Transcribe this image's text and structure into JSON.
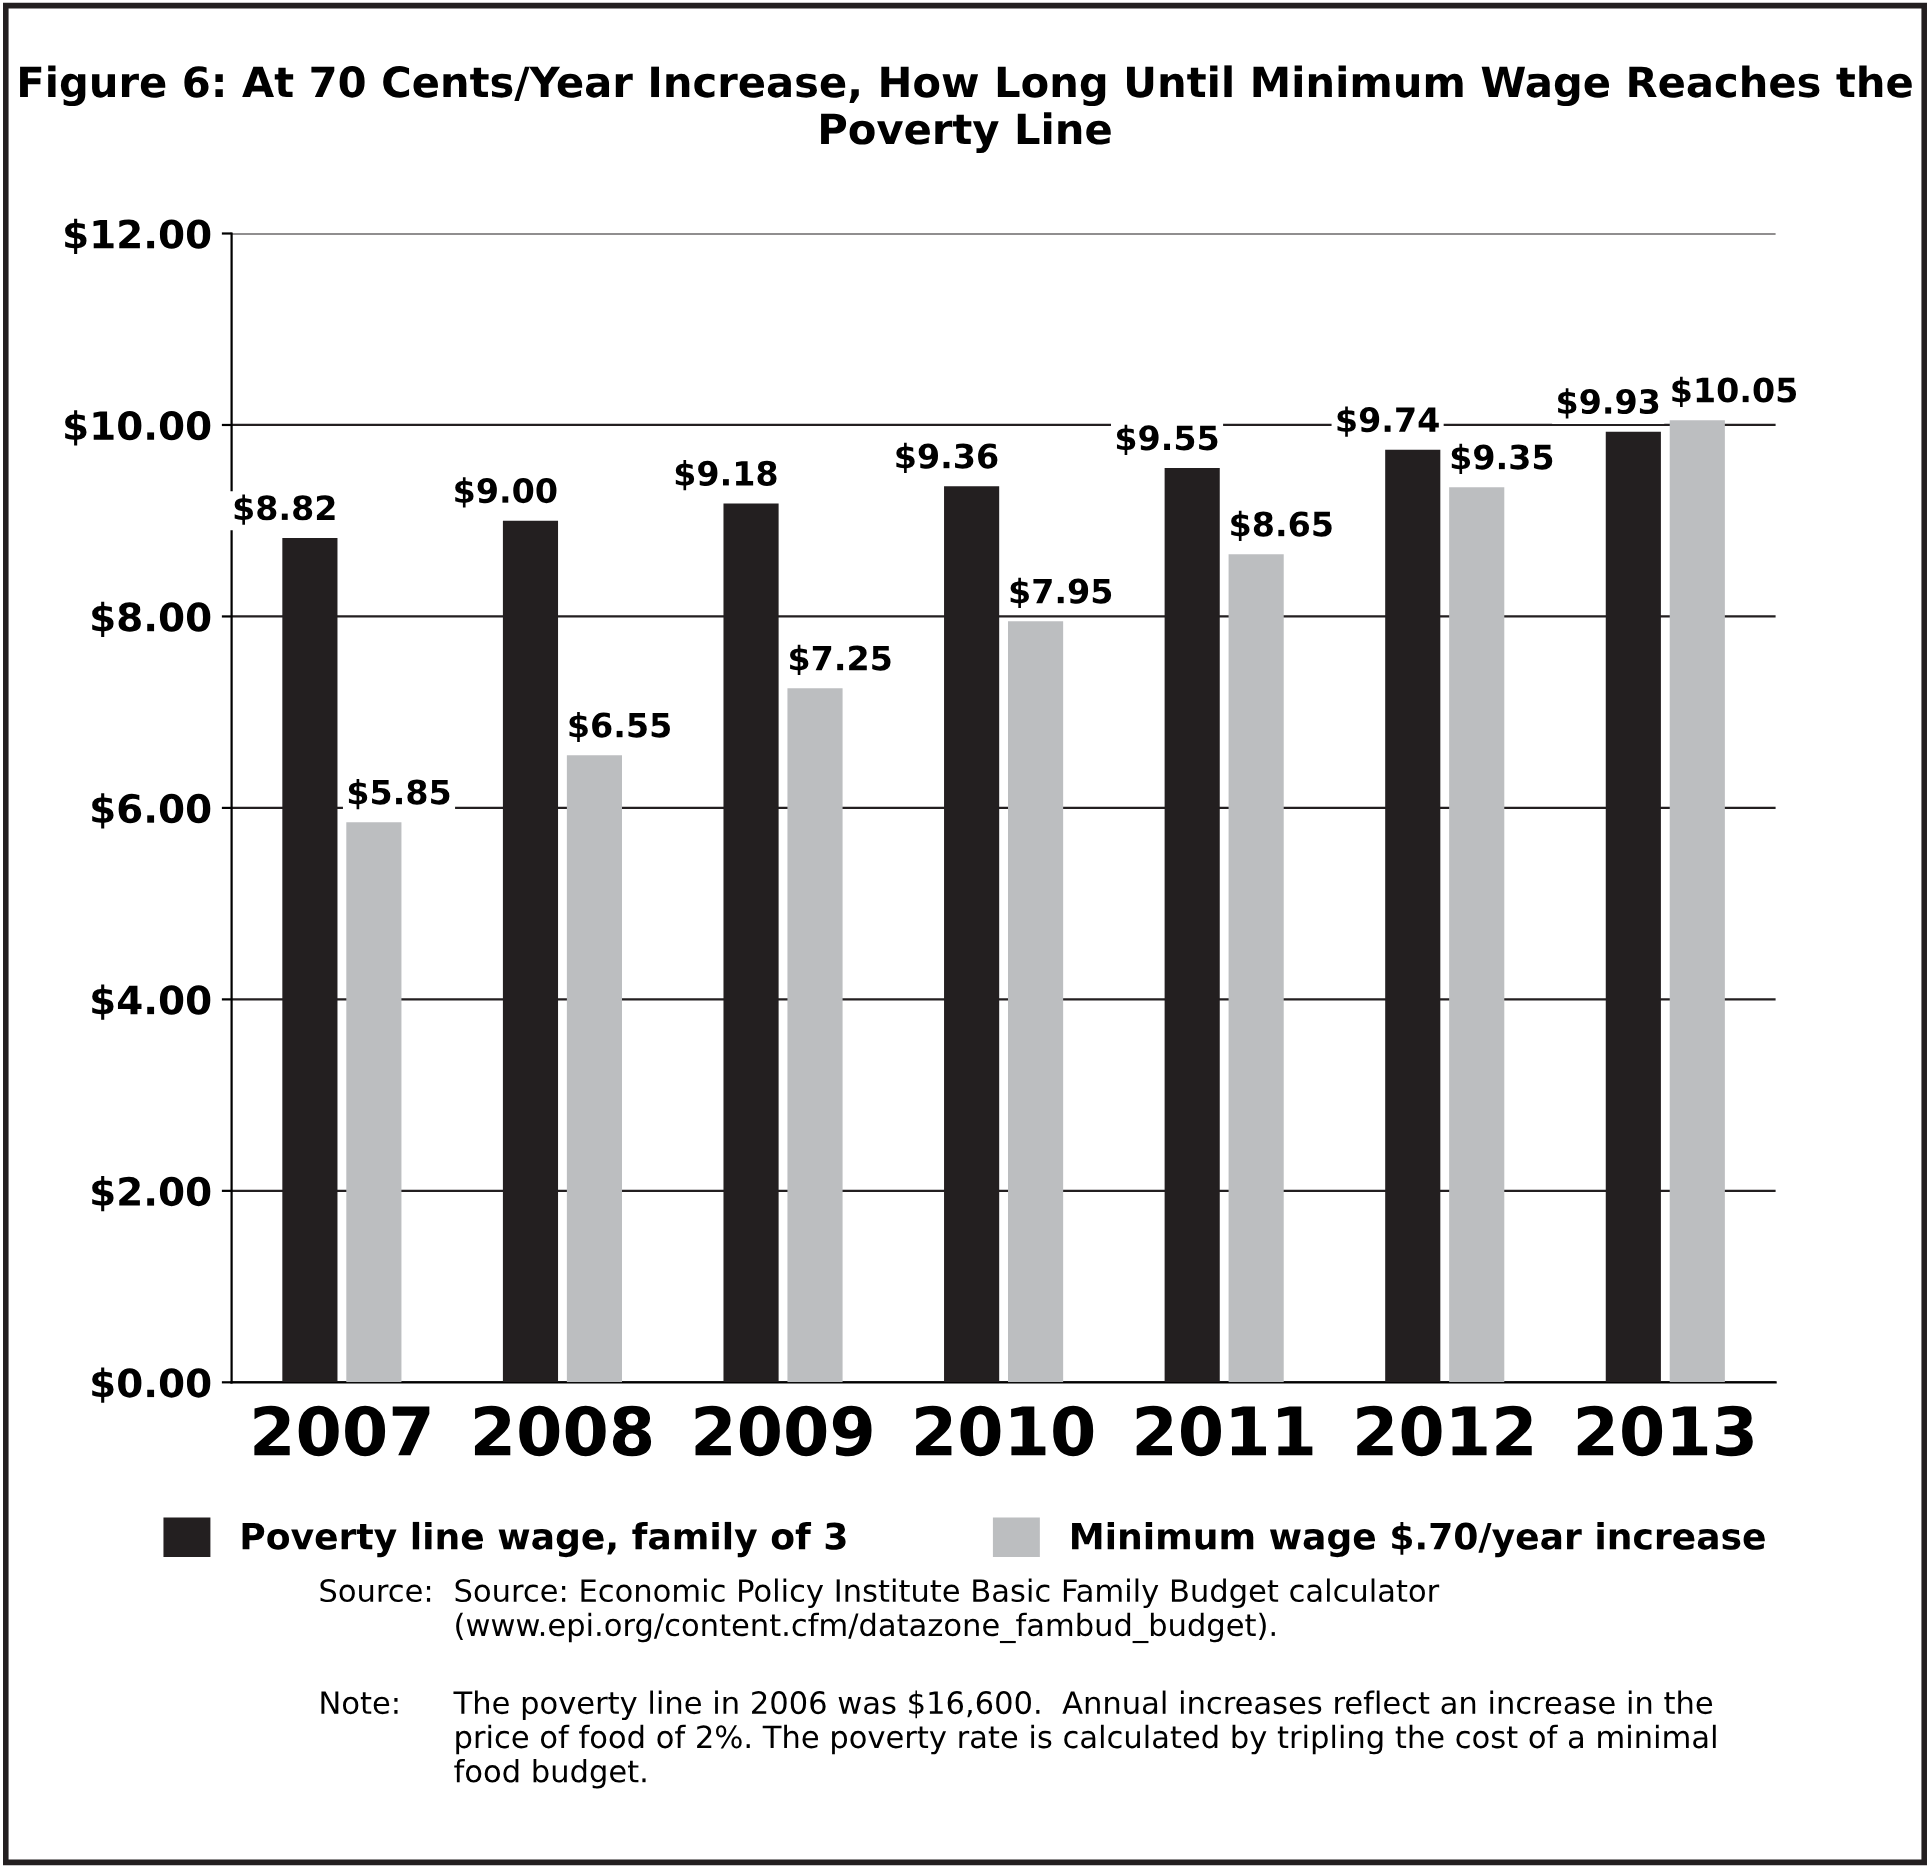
{
  "chart_data": {
    "type": "bar",
    "title": "Figure 6: At 70 Cents/Year Increase, How Long Until Minimum Wage Reaches the Poverty Line",
    "categories": [
      "2007",
      "2008",
      "2009",
      "2010",
      "2011",
      "2012",
      "2013"
    ],
    "series": [
      {
        "name": "Poverty line wage, family of 3",
        "color": "#231f20",
        "values": [
          8.82,
          9.0,
          9.18,
          9.36,
          9.55,
          9.74,
          9.93
        ],
        "value_labels": [
          "$8.82",
          "$9.00",
          "$9.18",
          "$9.36",
          "$9.55",
          "$9.74",
          "$9.93"
        ]
      },
      {
        "name": "Minimum wage $.70/year increase",
        "color": "#bcbec0",
        "values": [
          5.85,
          6.55,
          7.25,
          7.95,
          8.65,
          9.35,
          10.05
        ],
        "value_labels": [
          "$5.85",
          "$6.55",
          "$7.25",
          "$7.95",
          "$8.65",
          "$9.35",
          "$10.05"
        ]
      }
    ],
    "ylim": [
      0,
      12
    ],
    "yticks": [
      {
        "value": 0,
        "label": "$0.00"
      },
      {
        "value": 2,
        "label": "$2.00"
      },
      {
        "value": 4,
        "label": "$4.00"
      },
      {
        "value": 6,
        "label": "$6.00"
      },
      {
        "value": 8,
        "label": "$8.00"
      },
      {
        "value": 10,
        "label": "$10.00"
      },
      {
        "value": 12,
        "label": "$12.00"
      }
    ],
    "grid": "y",
    "legend": "bottom",
    "annotations": [
      "Source:",
      "Source: Economic Policy Institute Basic Family Budget calculator (www.epi.org/content.cfm/datazone_fambud_budget).",
      "Note:",
      "The poverty line in 2006 was $16,600.  Annual increases reflect an increase in the price of food of 2%. The poverty rate is calculated by tripling the cost of a minimal food budget."
    ]
  }
}
